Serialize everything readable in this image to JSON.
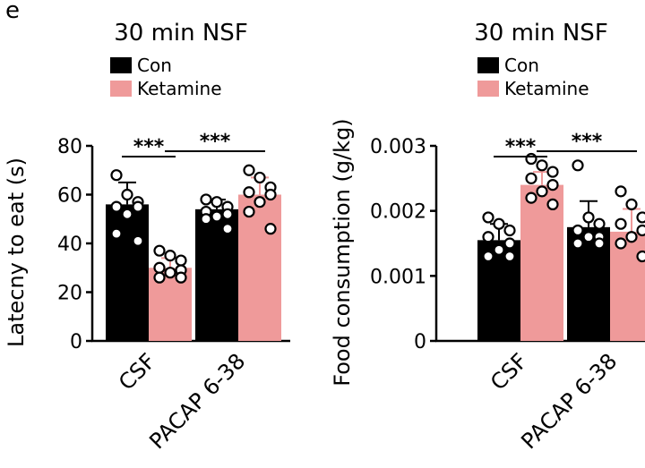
{
  "panel_letter": "e",
  "chart_data": [
    {
      "type": "bar",
      "title": "30 min NSF",
      "ylabel": "Latecny to eat (s)",
      "xlabel": "",
      "categories": [
        "CSF",
        "PACAP 6-38"
      ],
      "ylim": [
        0,
        80
      ],
      "yticks": [
        "0",
        "20",
        "40",
        "60",
        "80"
      ],
      "ytick_values": [
        0,
        20,
        40,
        60,
        80
      ],
      "legend": {
        "position": "top-left",
        "entries": [
          "Con",
          "Ketamine"
        ]
      },
      "series": [
        {
          "name": "Con",
          "color": "#000000",
          "values": [
            56,
            54
          ],
          "errors": [
            9,
            4
          ],
          "points": [
            [
              68,
              60,
              57,
              55,
              55,
              52,
              44,
              41
            ],
            [
              58,
              57,
              55,
              53,
              52,
              51,
              50,
              46
            ]
          ]
        },
        {
          "name": "Ketamine",
          "color": "#ef9a9a",
          "values": [
            30,
            60
          ],
          "errors": [
            4,
            7
          ],
          "points": [
            [
              37,
              35,
              33,
              30,
              29,
              28,
              26,
              26
            ],
            [
              70,
              67,
              63,
              61,
              60,
              57,
              53,
              46
            ]
          ]
        }
      ],
      "significance": [
        {
          "label": "***",
          "from": [
            0,
            0
          ],
          "to": [
            0,
            1
          ]
        },
        {
          "label": "***",
          "from": [
            0,
            1
          ],
          "to": [
            1,
            1
          ]
        }
      ]
    },
    {
      "type": "bar",
      "title": "30 min NSF",
      "ylabel": "Food consumption (g/kg)",
      "xlabel": "",
      "categories": [
        "CSF",
        "PACAP 6-38"
      ],
      "ylim": [
        0,
        0.003
      ],
      "yticks": [
        "0",
        "0.001",
        "0.002",
        "0.003"
      ],
      "ytick_values": [
        0,
        0.001,
        0.002,
        0.003
      ],
      "legend": {
        "position": "top-left",
        "entries": [
          "Con",
          "Ketamine"
        ]
      },
      "series": [
        {
          "name": "Con",
          "color": "#000000",
          "values": [
            0.00155,
            0.00175
          ],
          "errors": [
            0.00025,
            0.0004
          ],
          "points": [
            [
              0.0019,
              0.0018,
              0.0017,
              0.0016,
              0.0015,
              0.0014,
              0.0013,
              0.0013
            ],
            [
              0.0027,
              0.0019,
              0.0018,
              0.0017,
              0.0016,
              0.0016,
              0.0015,
              0.0015
            ]
          ]
        },
        {
          "name": "Ketamine",
          "color": "#ef9a9a",
          "values": [
            0.0024,
            0.00168
          ],
          "errors": [
            0.0002,
            0.00035
          ],
          "points": [
            [
              0.0028,
              0.0027,
              0.0026,
              0.0025,
              0.0024,
              0.0023,
              0.0022,
              0.0021
            ],
            [
              0.0023,
              0.0021,
              0.0019,
              0.0018,
              0.0017,
              0.0016,
              0.0015,
              0.0013
            ]
          ]
        }
      ],
      "significance": [
        {
          "label": "***",
          "from": [
            0,
            0
          ],
          "to": [
            0,
            1
          ]
        },
        {
          "label": "***",
          "from": [
            0,
            1
          ],
          "to": [
            1,
            1
          ]
        }
      ]
    }
  ]
}
